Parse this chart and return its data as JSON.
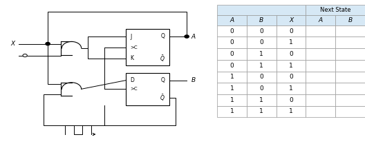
{
  "fig_width": 5.28,
  "fig_height": 2.12,
  "dpi": 100,
  "table_col_headers": [
    "A",
    "B",
    "X",
    "A",
    "B"
  ],
  "table_span_header": "Next State",
  "table_rows": [
    [
      "0",
      "0",
      "0",
      "",
      ""
    ],
    [
      "0",
      "0",
      "1",
      "",
      ""
    ],
    [
      "0",
      "1",
      "0",
      "",
      ""
    ],
    [
      "0",
      "1",
      "1",
      "",
      ""
    ],
    [
      "1",
      "0",
      "0",
      "",
      ""
    ],
    [
      "1",
      "0",
      "1",
      "",
      ""
    ],
    [
      "1",
      "1",
      "0",
      "",
      ""
    ],
    [
      "1",
      "1",
      "1",
      "",
      ""
    ]
  ],
  "header_bg": "#d6e8f5",
  "cell_bg": "#ffffff",
  "grid_color": "#999999",
  "circuit_bg": "#ffffff",
  "lw": 0.7,
  "gate_lw": 0.8,
  "fs_label": 6.0,
  "fs_ff": 5.5,
  "fs_table": 6.5
}
